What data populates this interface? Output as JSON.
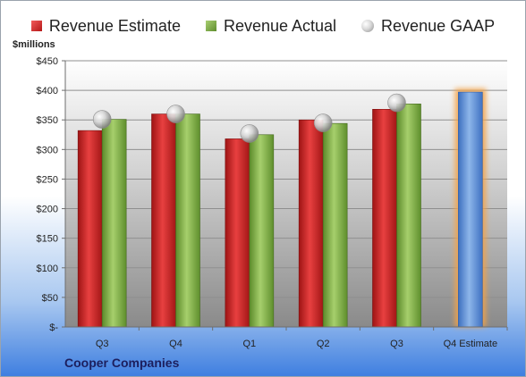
{
  "company": "Cooper Companies",
  "unit_label": "$millions",
  "legend": {
    "estimate": "Revenue Estimate",
    "actual": "Revenue Actual",
    "gaap": "Revenue GAAP"
  },
  "colors": {
    "estimate": "#d42a2a",
    "actual": "#8bb84e",
    "gaap": "#b5b5b5",
    "forecast": "#7aa5de",
    "forecast_glow": "#f4a347"
  },
  "chart_data": {
    "type": "bar",
    "categories": [
      "Q3",
      "Q4",
      "Q1",
      "Q2",
      "Q3",
      "Q4 Estimate"
    ],
    "series": [
      {
        "name": "Revenue Estimate",
        "values": [
          332,
          360,
          318,
          350,
          368,
          null
        ]
      },
      {
        "name": "Revenue Actual",
        "values": [
          351,
          360,
          325,
          344,
          377,
          397
        ]
      },
      {
        "name": "Revenue GAAP",
        "values": [
          351,
          360,
          327,
          345,
          379,
          null
        ]
      }
    ],
    "ylabel": "$millions",
    "ylim": [
      0,
      450
    ],
    "yticks": [
      0,
      50,
      100,
      150,
      200,
      250,
      300,
      350,
      400,
      450
    ],
    "ytick_labels": [
      "$-",
      "$50",
      "$100",
      "$150",
      "$200",
      "$250",
      "$300",
      "$350",
      "$400",
      "$450"
    ],
    "grid": true,
    "legend_position": "top"
  }
}
